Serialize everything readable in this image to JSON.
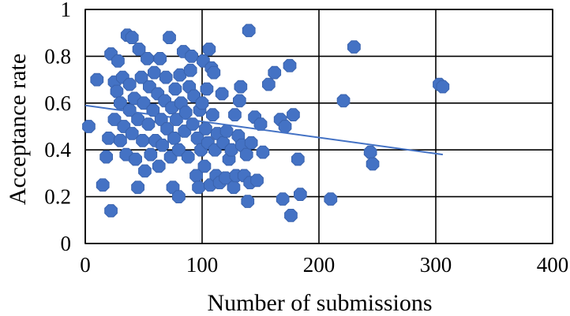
{
  "chart_data": {
    "type": "scatter",
    "title": "",
    "xlabel": "Number of submissions",
    "ylabel": "Acceptance rate",
    "xlim": [
      0,
      400
    ],
    "ylim": [
      0,
      1
    ],
    "x_ticks": [
      0,
      100,
      200,
      300,
      400
    ],
    "y_ticks": [
      0,
      0.2,
      0.4,
      0.6,
      0.8,
      1
    ],
    "x_tick_labels": [
      "0",
      "100",
      "200",
      "300",
      "400"
    ],
    "y_tick_labels": [
      "0",
      "0.2",
      "0.4",
      "0.6",
      "0.8",
      "1"
    ],
    "grid": true,
    "legend": "none",
    "marker_color": "#4472C4",
    "trendline_color": "#4472C4",
    "series": [
      {
        "points": [
          [
            3,
            0.5
          ],
          [
            10,
            0.7
          ],
          [
            15,
            0.25
          ],
          [
            18,
            0.37
          ],
          [
            20,
            0.45
          ],
          [
            22,
            0.14
          ],
          [
            22,
            0.81
          ],
          [
            25,
            0.69
          ],
          [
            25,
            0.53
          ],
          [
            27,
            0.65
          ],
          [
            28,
            0.78
          ],
          [
            30,
            0.6
          ],
          [
            30,
            0.44
          ],
          [
            32,
            0.71
          ],
          [
            33,
            0.5
          ],
          [
            35,
            0.38
          ],
          [
            36,
            0.89
          ],
          [
            38,
            0.57
          ],
          [
            38,
            0.68
          ],
          [
            40,
            0.88
          ],
          [
            40,
            0.47
          ],
          [
            42,
            0.62
          ],
          [
            43,
            0.36
          ],
          [
            45,
            0.24
          ],
          [
            45,
            0.53
          ],
          [
            46,
            0.83
          ],
          [
            48,
            0.71
          ],
          [
            49,
            0.44
          ],
          [
            50,
            0.6
          ],
          [
            51,
            0.31
          ],
          [
            53,
            0.79
          ],
          [
            54,
            0.51
          ],
          [
            55,
            0.67
          ],
          [
            56,
            0.38
          ],
          [
            58,
            0.57
          ],
          [
            59,
            0.73
          ],
          [
            60,
            0.44
          ],
          [
            62,
            0.64
          ],
          [
            63,
            0.33
          ],
          [
            64,
            0.79
          ],
          [
            65,
            0.53
          ],
          [
            66,
            0.42
          ],
          [
            68,
            0.61
          ],
          [
            69,
            0.71
          ],
          [
            70,
            0.49
          ],
          [
            72,
            0.88
          ],
          [
            73,
            0.37
          ],
          [
            74,
            0.58
          ],
          [
            75,
            0.24
          ],
          [
            76,
            0.45
          ],
          [
            77,
            0.66
          ],
          [
            78,
            0.53
          ],
          [
            80,
            0.2
          ],
          [
            80,
            0.4
          ],
          [
            81,
            0.72
          ],
          [
            82,
            0.6
          ],
          [
            84,
            0.82
          ],
          [
            85,
            0.48
          ],
          [
            86,
            0.56
          ],
          [
            88,
            0.37
          ],
          [
            89,
            0.67
          ],
          [
            90,
            0.74
          ],
          [
            91,
            0.8
          ],
          [
            92,
            0.51
          ],
          [
            93,
            0.63
          ],
          [
            95,
            0.29
          ],
          [
            96,
            0.45
          ],
          [
            97,
            0.24
          ],
          [
            98,
            0.57
          ],
          [
            99,
            0.4
          ],
          [
            100,
            0.6
          ],
          [
            101,
            0.78
          ],
          [
            102,
            0.33
          ],
          [
            103,
            0.49
          ],
          [
            104,
            0.66
          ],
          [
            105,
            0.43
          ],
          [
            106,
            0.83
          ],
          [
            107,
            0.25
          ],
          [
            108,
            0.75
          ],
          [
            109,
            0.55
          ],
          [
            110,
            0.73
          ],
          [
            111,
            0.4
          ],
          [
            112,
            0.29
          ],
          [
            113,
            0.47
          ],
          [
            115,
            0.26
          ],
          [
            117,
            0.64
          ],
          [
            118,
            0.43
          ],
          [
            120,
            0.28
          ],
          [
            121,
            0.48
          ],
          [
            123,
            0.36
          ],
          [
            125,
            0.4
          ],
          [
            127,
            0.24
          ],
          [
            128,
            0.55
          ],
          [
            129,
            0.29
          ],
          [
            131,
            0.46
          ],
          [
            132,
            0.61
          ],
          [
            133,
            0.67
          ],
          [
            134,
            0.42
          ],
          [
            136,
            0.29
          ],
          [
            138,
            0.38
          ],
          [
            139,
            0.18
          ],
          [
            140,
            0.91
          ],
          [
            141,
            0.26
          ],
          [
            142,
            0.43
          ],
          [
            145,
            0.54
          ],
          [
            147,
            0.27
          ],
          [
            150,
            0.51
          ],
          [
            152,
            0.39
          ],
          [
            157,
            0.68
          ],
          [
            162,
            0.73
          ],
          [
            167,
            0.53
          ],
          [
            169,
            0.19
          ],
          [
            171,
            0.5
          ],
          [
            175,
            0.76
          ],
          [
            176,
            0.12
          ],
          [
            178,
            0.55
          ],
          [
            182,
            0.36
          ],
          [
            184,
            0.21
          ],
          [
            210,
            0.19
          ],
          [
            221,
            0.61
          ],
          [
            230,
            0.84
          ],
          [
            244,
            0.39
          ],
          [
            246,
            0.34
          ],
          [
            303,
            0.68
          ],
          [
            306,
            0.67
          ]
        ]
      }
    ],
    "trendline": {
      "x": [
        0,
        306
      ],
      "y": [
        0.59,
        0.38
      ]
    }
  }
}
